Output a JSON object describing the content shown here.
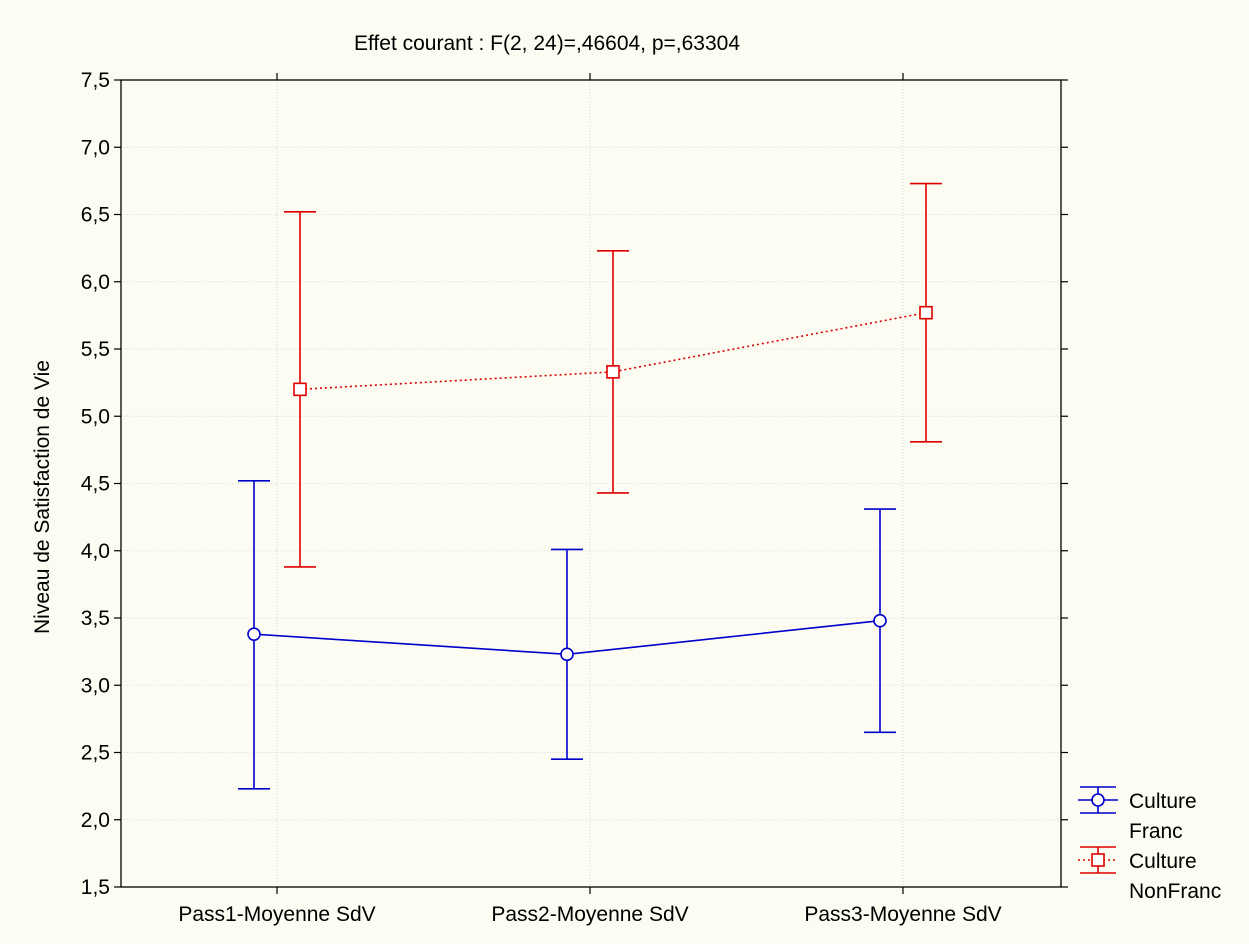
{
  "chart_data": {
    "type": "line",
    "title": "Effet courant : F(2, 24)=,46604, p=,63304",
    "xlabel": "",
    "ylabel": "Niveau de Satisfaction de Vie",
    "categories": [
      "Pass1-Moyenne SdV",
      "Pass2-Moyenne SdV",
      "Pass3-Moyenne SdV"
    ],
    "ylim": [
      1.5,
      7.5
    ],
    "yticks": [
      "1,5",
      "2,0",
      "2,5",
      "3,0",
      "3,5",
      "4,0",
      "4,5",
      "5,0",
      "5,5",
      "6,0",
      "6,5",
      "7,0",
      "7,5"
    ],
    "grid": true,
    "legend_position": "bottom-right",
    "series": [
      {
        "name": "Culture Franc",
        "legend_lines": [
          "Culture",
          "Franc"
        ],
        "color": "#0000cc",
        "line_style": "solid",
        "marker": "circle",
        "values": [
          3.38,
          3.23,
          3.48
        ],
        "error_low": [
          2.23,
          2.45,
          2.65
        ],
        "error_high": [
          4.52,
          4.01,
          4.31
        ]
      },
      {
        "name": "Culture NonFranc",
        "legend_lines": [
          "Culture",
          "NonFranc"
        ],
        "color": "#dd0000",
        "line_style": "dotted",
        "marker": "square",
        "values": [
          5.2,
          5.33,
          5.77
        ],
        "error_low": [
          3.88,
          4.43,
          4.81
        ],
        "error_high": [
          6.52,
          6.23,
          6.73
        ]
      }
    ]
  }
}
